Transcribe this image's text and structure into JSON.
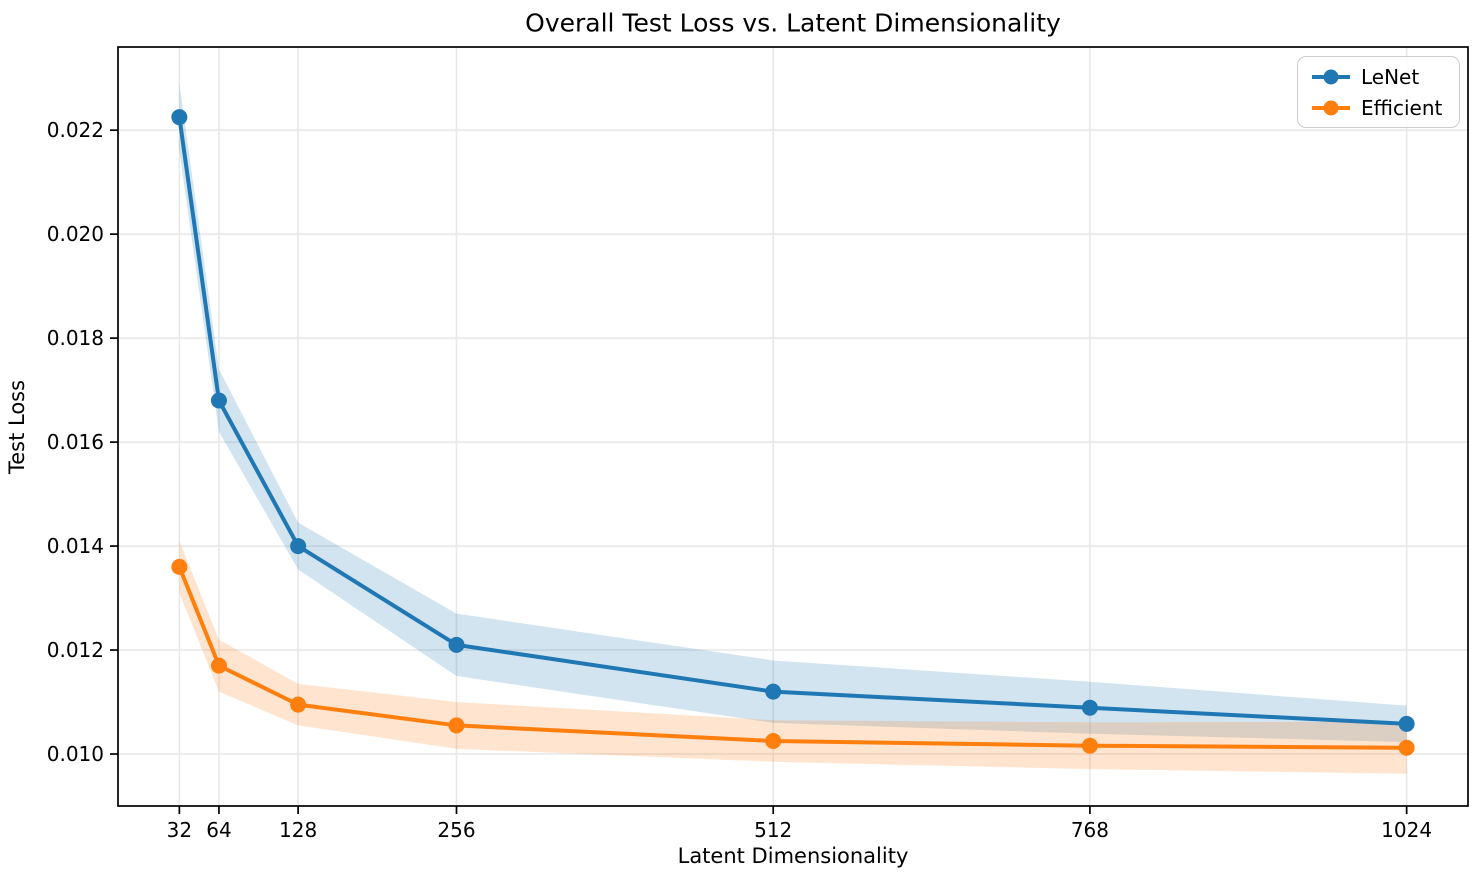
{
  "chart_data": {
    "type": "line",
    "title": "Overall Test Loss vs. Latent Dimensionality",
    "xlabel": "Latent Dimensionality",
    "ylabel": "Test Loss",
    "x": [
      32,
      64,
      128,
      256,
      512,
      768,
      1024
    ],
    "series": [
      {
        "name": "LeNet",
        "color": "#1f77b4",
        "values": [
          0.02225,
          0.0168,
          0.014,
          0.0121,
          0.0112,
          0.01089,
          0.01058
        ],
        "ci": [
          0.00065,
          0.0006,
          0.00045,
          0.0006,
          0.0006,
          0.0005,
          0.00035
        ]
      },
      {
        "name": "Efficient",
        "color": "#ff7f0e",
        "values": [
          0.0136,
          0.0117,
          0.01095,
          0.01055,
          0.01025,
          0.01016,
          0.01012
        ],
        "ci": [
          0.0005,
          0.0005,
          0.0004,
          0.00045,
          0.0004,
          0.00045,
          0.0005
        ]
      }
    ],
    "xticks": {
      "values": [
        32,
        64,
        128,
        256,
        512,
        768,
        1024
      ],
      "labels": [
        "32",
        "64",
        "128",
        "256",
        "512",
        "768",
        "1024"
      ]
    },
    "yticks": {
      "values": [
        0.01,
        0.012,
        0.014,
        0.016,
        0.018,
        0.02,
        0.022
      ],
      "labels": [
        "0.010",
        "0.012",
        "0.014",
        "0.016",
        "0.018",
        "0.020",
        "0.022"
      ]
    },
    "xlim": [
      -17.6,
      1073.6
    ],
    "ylim": [
      0.009,
      0.0236
    ],
    "grid": true,
    "grid_color": "#e7e7e7",
    "axis_color": "#000000",
    "band_alpha": 0.2,
    "legend": {
      "position": "upper right",
      "entries": [
        "LeNet",
        "Efficient"
      ]
    }
  }
}
